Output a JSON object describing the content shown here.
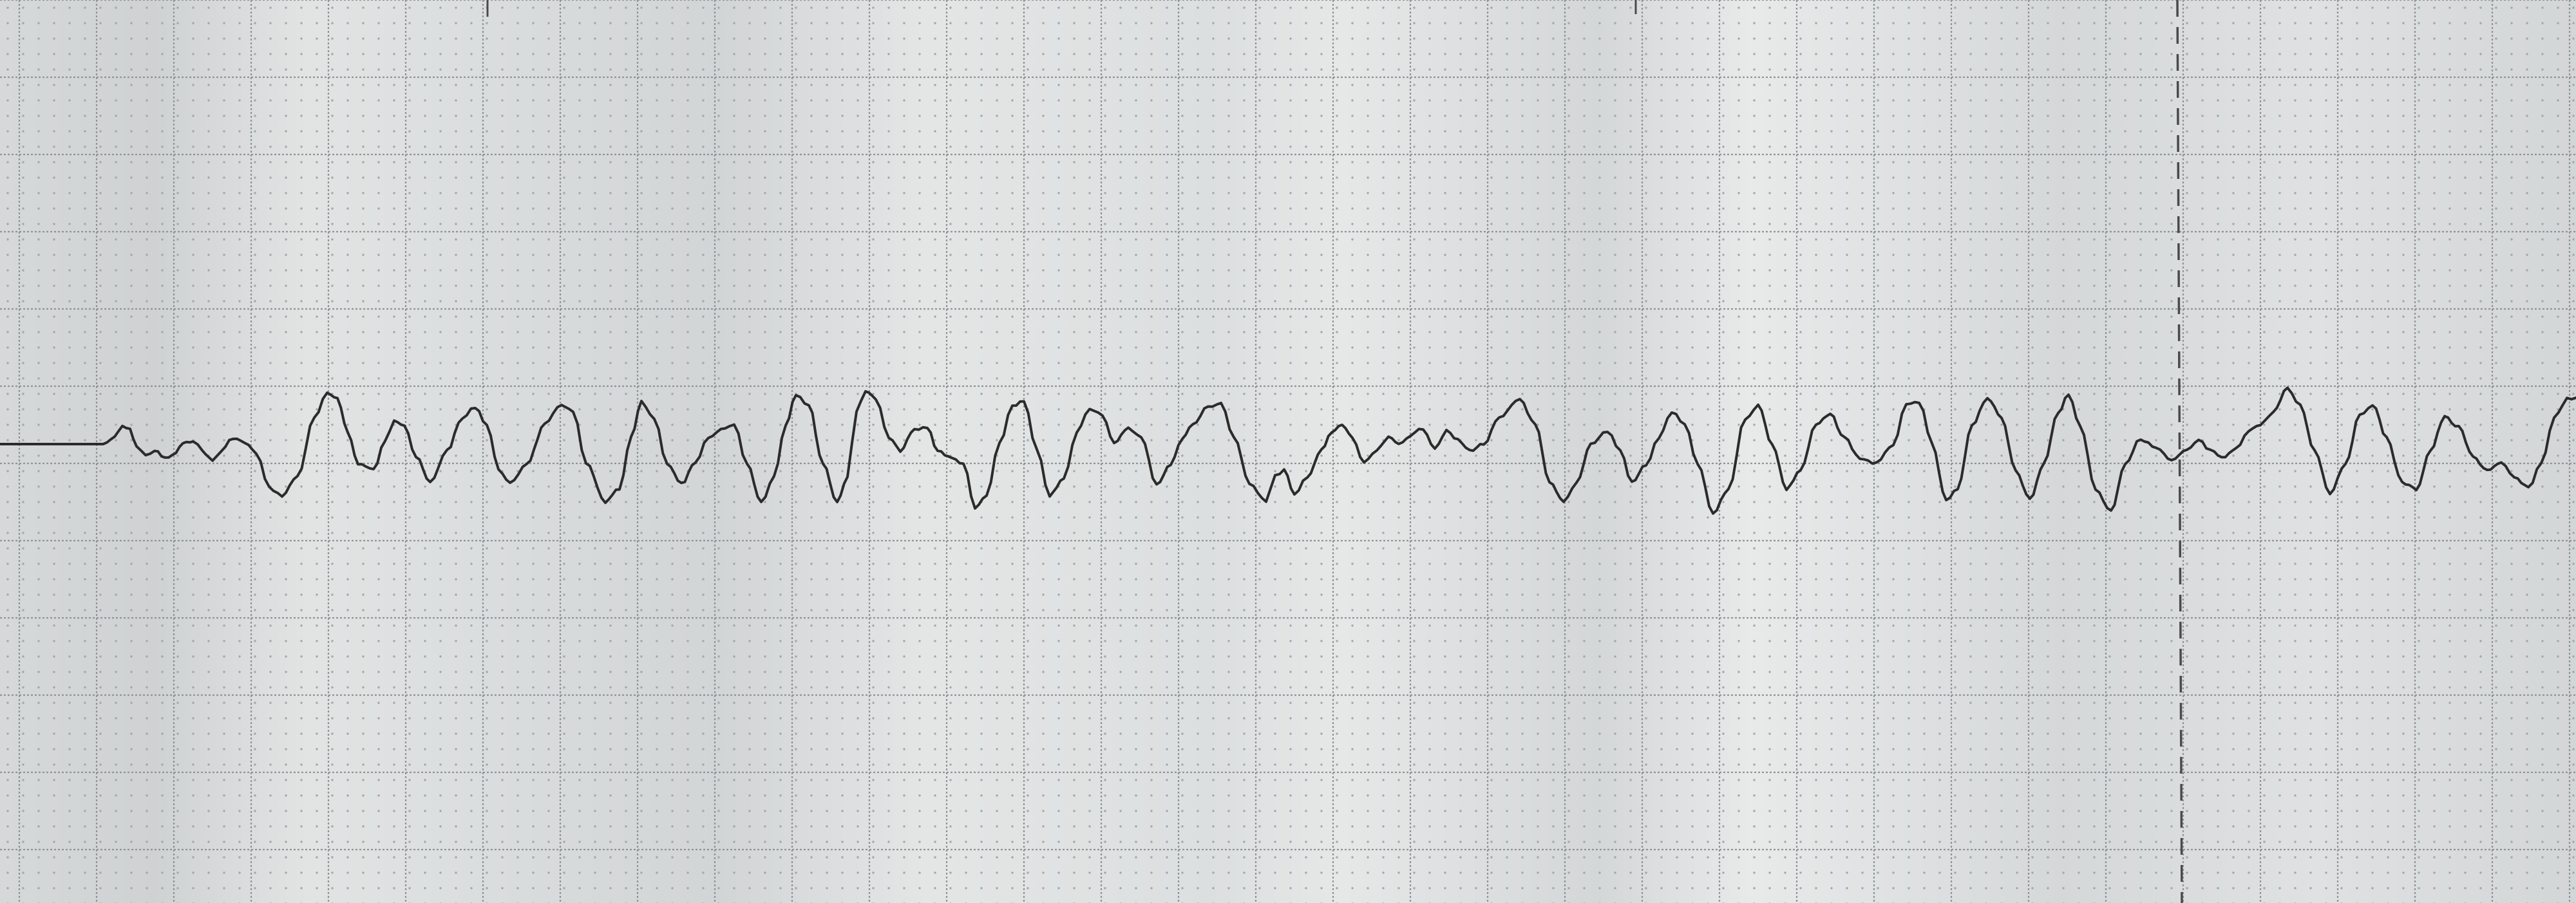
{
  "photo": {
    "subject": "ecg-rhythm-strip",
    "colors": {
      "paper": "#d9dcdd",
      "paper_light": "#e9ebeb",
      "paper_shadow": "#c8cbcc",
      "grid_major": "#8f9496",
      "grid_minor_dot": "#a3a8aa",
      "trace": "#2b2b2b",
      "marker": "#4a4a4a"
    }
  }
}
